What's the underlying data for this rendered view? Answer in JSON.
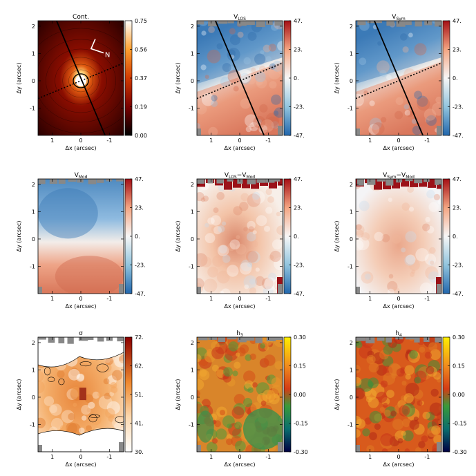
{
  "chart_data": {
    "type": "heatmap",
    "layout": "3x3 grid of kinematic maps",
    "x_axis": {
      "label": "Δx (arcsec)",
      "ticks": [
        "1",
        "0",
        "-1"
      ],
      "range": [
        1.5,
        -1.5
      ]
    },
    "y_axis": {
      "label": "Δy (arcsec)",
      "ticks": [
        "2",
        "1",
        "0",
        "-1"
      ],
      "range": [
        -2.0,
        2.2
      ]
    },
    "panels": [
      {
        "id": "cont",
        "title": "Cont.",
        "title_sub": "",
        "title_suffix": "",
        "title_sub2": "",
        "cmap": "heat",
        "cbar_ticks": [
          "0.75",
          "0.56",
          "0.37",
          "0.19",
          "0.00"
        ],
        "cbar_range": [
          0.0,
          0.75
        ],
        "compass_label": "N",
        "has_black_line": true,
        "has_dotted_line": true,
        "contours": "circular isophotes"
      },
      {
        "id": "vlos",
        "title": "V",
        "title_sub": "LOS",
        "title_suffix": "",
        "title_sub2": "",
        "cmap": "diverging",
        "cbar_ticks": [
          "47.",
          "23.",
          "0.",
          "-23.",
          "-47."
        ],
        "cbar_range": [
          -47,
          47
        ],
        "has_black_line": true,
        "has_dotted_line": true
      },
      {
        "id": "vsym",
        "title": "V",
        "title_sub": "Sym",
        "title_suffix": "",
        "title_sub2": "",
        "cmap": "diverging",
        "cbar_ticks": [
          "47.",
          "23.",
          "0.",
          "-23.",
          "-47."
        ],
        "cbar_range": [
          -47,
          47
        ],
        "has_black_line": true,
        "has_dotted_line": true
      },
      {
        "id": "vmod",
        "title": "V",
        "title_sub": "Mod",
        "title_suffix": "",
        "title_sub2": "",
        "cmap": "diverging",
        "cbar_ticks": [
          "47.",
          "23.",
          "0.",
          "-23.",
          "-47."
        ],
        "cbar_range": [
          -47,
          47
        ]
      },
      {
        "id": "vlos-vmod",
        "title": "V",
        "title_sub": "LOS",
        "title_suffix": "−V",
        "title_sub2": "Mod",
        "cmap": "diverging",
        "cbar_ticks": [
          "47.",
          "23.",
          "0.",
          "-23.",
          "-47."
        ],
        "cbar_range": [
          -47,
          47
        ]
      },
      {
        "id": "vsym-vmod",
        "title": "V",
        "title_sub": "Sym",
        "title_suffix": "−V",
        "title_sub2": "Mod",
        "cmap": "diverging",
        "cbar_ticks": [
          "47.",
          "23.",
          "0.",
          "-23.",
          "-47."
        ],
        "cbar_range": [
          -47,
          47
        ]
      },
      {
        "id": "sigma",
        "title": "σ",
        "title_sub": "",
        "title_suffix": "",
        "title_sub2": "",
        "cmap": "sigma",
        "cbar_ticks": [
          "72.",
          "62.",
          "51.",
          "41.",
          "30."
        ],
        "cbar_range": [
          30,
          72
        ],
        "contours": "dispersion contours"
      },
      {
        "id": "h3",
        "title": "h",
        "title_sub": "3",
        "title_suffix": "",
        "title_sub2": "",
        "cmap": "hermite",
        "cbar_ticks": [
          "0.30",
          "0.15",
          "0.00",
          "-0.15",
          "-0.30"
        ],
        "cbar_range": [
          -0.3,
          0.3
        ]
      },
      {
        "id": "h4",
        "title": "h",
        "title_sub": "4",
        "title_suffix": "",
        "title_sub2": "",
        "cmap": "hermite",
        "cbar_ticks": [
          "0.30",
          "0.15",
          "0.00",
          "-0.15",
          "-0.30"
        ],
        "cbar_range": [
          -0.3,
          0.3
        ]
      }
    ]
  },
  "colors": {
    "blue_end": "#2166ac",
    "red_end": "#a50f15",
    "neutral": "#f7f7f7",
    "heat_dark": "#3a0000",
    "heat_bright": "#ffffff",
    "hermite_low": "#000066",
    "hermite_mid": "#cc3311",
    "hermite_high": "#ffee00",
    "masked": "#888888"
  }
}
